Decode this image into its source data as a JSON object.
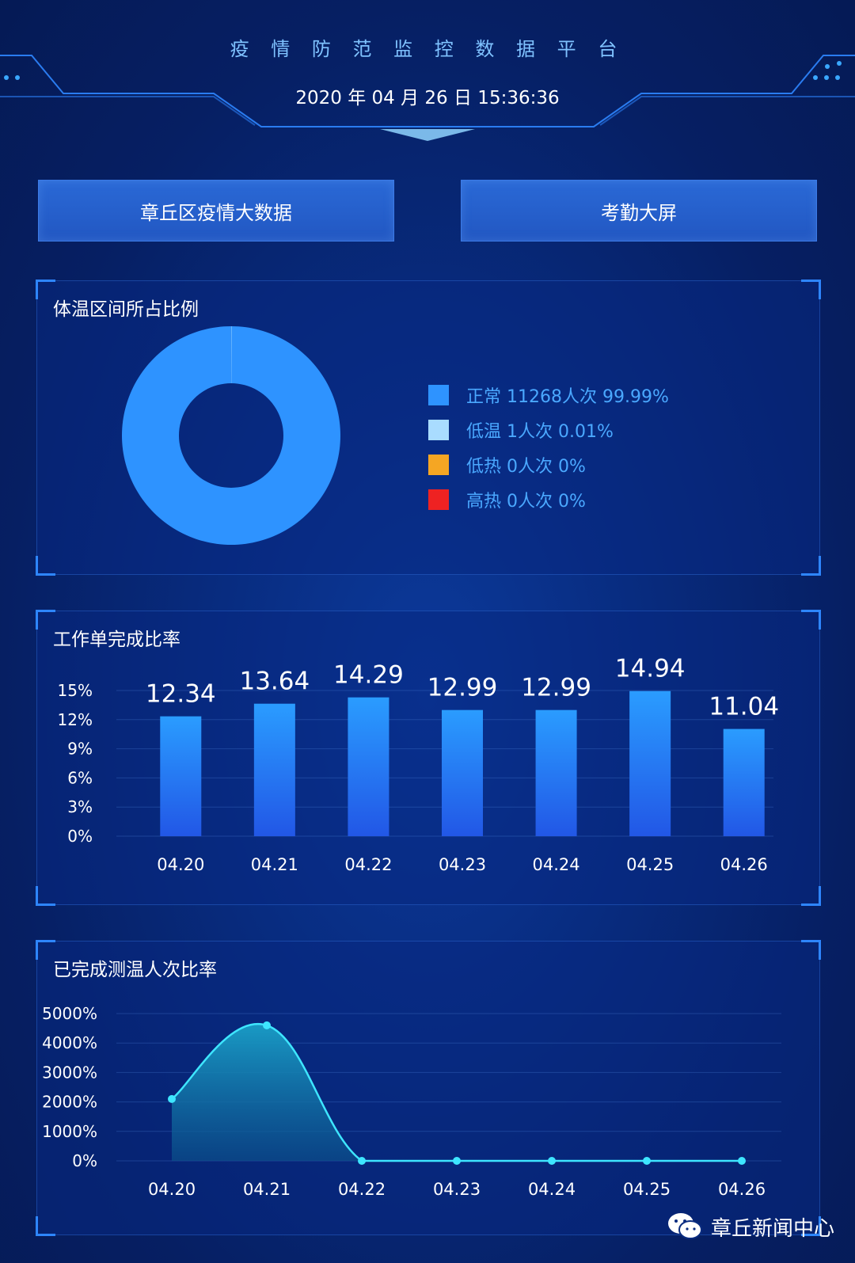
{
  "header": {
    "title": "疫 情 防 范 监 控 数 据 平 台",
    "datetime": "2020 年 04 月 26 日 15:36:36"
  },
  "nav": {
    "left_label": "章丘区疫情大数据",
    "right_label": "考勤大屏"
  },
  "temperature_panel": {
    "title": "体温区间所占比例",
    "legend": [
      {
        "label": "正常 11268人次 99.99%",
        "color": "#2e93ff"
      },
      {
        "label": "低温 1人次 0.01%",
        "color": "#a9dcff"
      },
      {
        "label": "低热 0人次 0%",
        "color": "#f5a623"
      },
      {
        "label": "高热 0人次 0%",
        "color": "#ee2222"
      }
    ]
  },
  "workorder_panel": {
    "title": "工作单完成比率"
  },
  "measure_panel": {
    "title": "已完成测温人次比率"
  },
  "watermark": {
    "text": "章丘新闻中心",
    "icon": "wechat-icon"
  },
  "colors": {
    "accent": "#2e93ff",
    "bar_top": "#2a9cff",
    "bar_bottom": "#2257e6",
    "line": "#3ee6ff"
  },
  "chart_data": [
    {
      "type": "pie",
      "donut": true,
      "title": "体温区间所占比例",
      "labels": [
        "正常",
        "低温",
        "低热",
        "高热"
      ],
      "counts": [
        11268,
        1,
        0,
        0
      ],
      "percent": [
        99.99,
        0.01,
        0,
        0
      ]
    },
    {
      "type": "bar",
      "title": "工作单完成比率",
      "categories": [
        "04.20",
        "04.21",
        "04.22",
        "04.23",
        "04.24",
        "04.25",
        "04.26"
      ],
      "values": [
        12.34,
        13.64,
        14.29,
        12.99,
        12.99,
        14.94,
        11.04
      ],
      "yticks": [
        "0%",
        "3%",
        "6%",
        "9%",
        "12%",
        "15%"
      ],
      "ylim": [
        0,
        15
      ]
    },
    {
      "type": "area",
      "title": "已完成测温人次比率",
      "categories": [
        "04.20",
        "04.21",
        "04.22",
        "04.23",
        "04.24",
        "04.25",
        "04.26"
      ],
      "values": [
        2100,
        4600,
        0,
        0,
        0,
        0,
        0
      ],
      "yticks": [
        "0%",
        "1000%",
        "2000%",
        "3000%",
        "4000%",
        "5000%"
      ],
      "ylim": [
        0,
        5000
      ]
    }
  ]
}
